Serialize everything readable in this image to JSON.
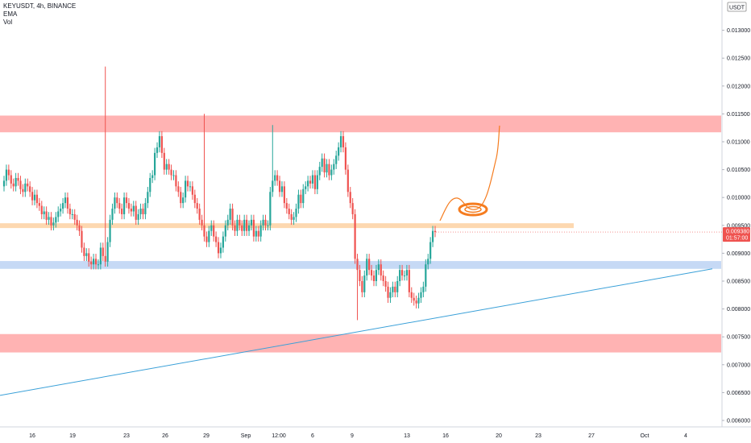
{
  "legend": {
    "symbol_line": "KEYUSDT, 4h, BINANCE",
    "indicator_1": "EMA",
    "indicator_2": "Vol"
  },
  "colors": {
    "bull": "#26a69a",
    "bear": "#ef5350",
    "resistance_zone": "#ffb3b3",
    "support_zone_red": "#ffb3b3",
    "support_zone_blue": "#c6d9f5",
    "level_orange": "#fdd8b0",
    "trendline": "#3aa0d8",
    "projection": "#f57c1f",
    "price_badge": "#ef5350",
    "currency_border": "#888888"
  },
  "chart_data": {
    "type": "candlestick",
    "currency_unit": "USDT",
    "ylim": [
      0.006,
      0.0135
    ],
    "y_ticks": [
      "0.006000",
      "0.006500",
      "0.007000",
      "0.007500",
      "0.008000",
      "0.008500",
      "0.009000",
      "0.009500",
      "0.010000",
      "0.010500",
      "0.011000",
      "0.011500",
      "0.012000",
      "0.012500",
      "0.013000"
    ],
    "x_ticks": [
      "16",
      "19",
      "23",
      "26",
      "29",
      "Sep",
      "12:00",
      "6",
      "9",
      "13",
      "16",
      "20",
      "23",
      "27",
      "Oct",
      "4"
    ],
    "last_price": "0.009380",
    "countdown": "01:57:00",
    "zones": [
      {
        "name": "resistance",
        "from": 0.01117,
        "to": 0.01147
      },
      {
        "name": "support-blue",
        "from": 0.00872,
        "to": 0.00886
      },
      {
        "name": "support-red",
        "from": 0.00722,
        "to": 0.00755
      }
    ],
    "levels": [
      {
        "name": "orange-level",
        "value": 0.009495
      }
    ],
    "candles_close": [
      0.0103,
      0.0105,
      0.0104,
      0.01025,
      0.0102,
      0.01035,
      0.0103,
      0.01015,
      0.0101,
      0.01025,
      0.0102,
      0.0101,
      0.00995,
      0.01005,
      0.0099,
      0.00985,
      0.0097,
      0.00975,
      0.0096,
      0.00965,
      0.0095,
      0.00955,
      0.00965,
      0.00975,
      0.0098,
      0.0099,
      0.01,
      0.0098,
      0.0097,
      0.0097,
      0.0096,
      0.0095,
      0.0094,
      0.0091,
      0.00895,
      0.009,
      0.00885,
      0.0088,
      0.0089,
      0.0088,
      0.0088,
      0.0091,
      0.00895,
      0.00885,
      0.0092,
      0.0096,
      0.0098,
      0.01,
      0.0099,
      0.0098,
      0.0097,
      0.01,
      0.0099,
      0.0098,
      0.00975,
      0.00985,
      0.0096,
      0.0097,
      0.0098,
      0.0097,
      0.0099,
      0.0101,
      0.01035,
      0.0104,
      0.0108,
      0.0109,
      0.0111,
      0.0108,
      0.0105,
      0.0106,
      0.0105,
      0.0104,
      0.0104,
      0.0102,
      0.0101,
      0.0099,
      0.01,
      0.0103,
      0.0102,
      0.0102,
      0.01005,
      0.0099,
      0.0098,
      0.0096,
      0.0095,
      0.0093,
      0.0092,
      0.0094,
      0.0095,
      0.0093,
      0.0092,
      0.009,
      0.0091,
      0.0093,
      0.0095,
      0.0096,
      0.0098,
      0.0095,
      0.0094,
      0.0096,
      0.0095,
      0.0094,
      0.0096,
      0.0094,
      0.0095,
      0.0096,
      0.0093,
      0.0094,
      0.0093,
      0.0095,
      0.0096,
      0.0095,
      0.0095,
      0.0101,
      0.0103,
      0.0104,
      0.0103,
      0.0101,
      0.0102,
      0.0099,
      0.0098,
      0.0097,
      0.0096,
      0.00965,
      0.0098,
      0.01005,
      0.0099,
      0.01015,
      0.0102,
      0.0103,
      0.01025,
      0.0104,
      0.01015,
      0.0104,
      0.01055,
      0.0107,
      0.01045,
      0.0106,
      0.0104,
      0.0105,
      0.0106,
      0.01075,
      0.0109,
      0.0111,
      0.0109,
      0.0105,
      0.0101,
      0.0099,
      0.0097,
      0.0089,
      0.0087,
      0.0085,
      0.0083,
      0.0086,
      0.0089,
      0.0087,
      0.0086,
      0.0085,
      0.0087,
      0.0088,
      0.0086,
      0.0085,
      0.0084,
      0.0082,
      0.0083,
      0.0084,
      0.0083,
      0.0085,
      0.0087,
      0.0086,
      0.0086,
      0.0087,
      0.0083,
      0.0082,
      0.00815,
      0.0081,
      0.0082,
      0.0083,
      0.0084,
      0.0088,
      0.0089,
      0.0092,
      0.0094,
      0.00938
    ]
  }
}
